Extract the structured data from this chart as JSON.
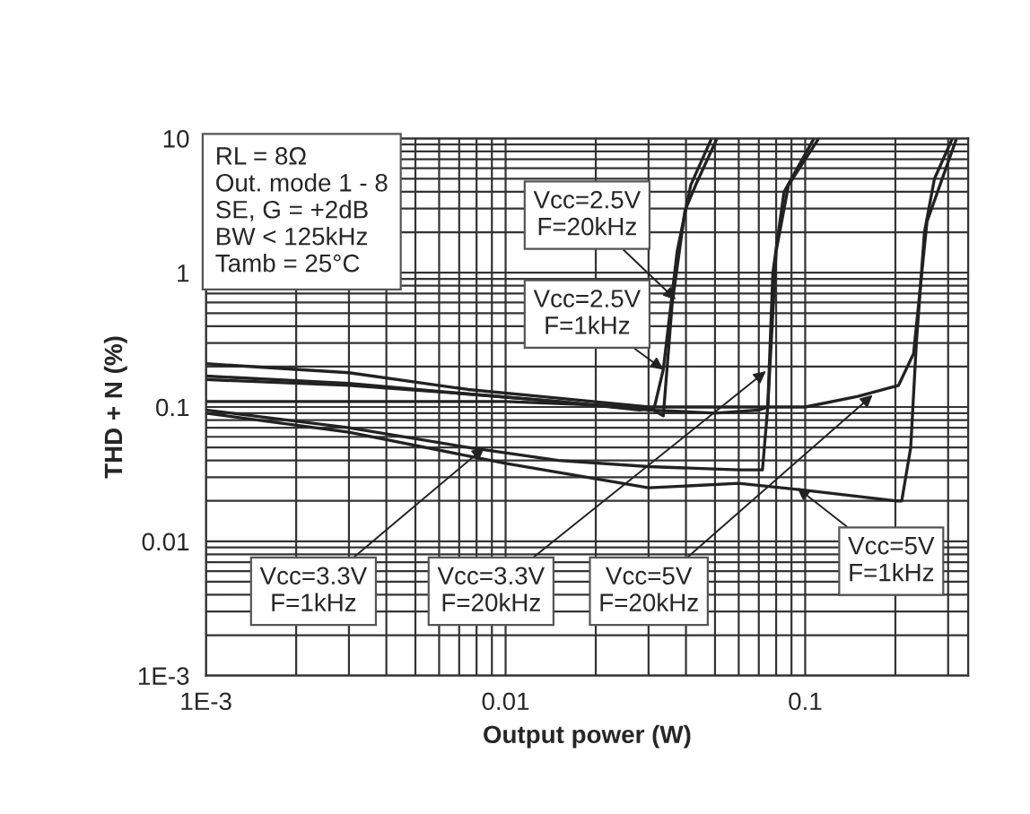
{
  "chart_data": {
    "type": "line",
    "xlabel": "Output power (W)",
    "ylabel": "THD + N (%)",
    "log": "xy",
    "grid": true,
    "xlim": [
      0.001,
      0.35
    ],
    "ylim": [
      0.001,
      10
    ],
    "xticks": [
      {
        "value": 0.001,
        "label": "1E-3"
      },
      0.01,
      0.1
    ],
    "yticks": [
      {
        "value": 0.001,
        "label": "1E-3"
      },
      0.01,
      0.1,
      1,
      10
    ],
    "series": [
      {
        "color": "#222222",
        "x": [
          0.001,
          0.003,
          0.0075,
          0.013,
          0.03,
          0.0336,
          0.036,
          0.0397,
          0.0431,
          0.0508
        ],
        "values": [
          0.21,
          0.18,
          0.135,
          0.12,
          0.1,
          0.086,
          0.6,
          2.9,
          4.5,
          10
        ]
      },
      {
        "color": "#222222",
        "x": [
          0.001,
          0.003,
          0.0075,
          0.015,
          0.028,
          0.0314,
          0.0336,
          0.0374,
          0.0415,
          0.0487
        ],
        "values": [
          0.16,
          0.145,
          0.125,
          0.11,
          0.095,
          0.1,
          0.19,
          1.45,
          4.5,
          10
        ]
      },
      {
        "color": "#222222",
        "x": [
          0.001,
          0.003,
          0.0075,
          0.015,
          0.03,
          0.05,
          0.07,
          0.075,
          0.08,
          0.088,
          0.111
        ],
        "values": [
          0.17,
          0.15,
          0.125,
          0.11,
          0.095,
          0.09,
          0.095,
          0.1,
          1.45,
          4.5,
          10
        ]
      },
      {
        "color": "#222222",
        "x": [
          0.001,
          0.003,
          0.0075,
          0.015,
          0.03,
          0.06,
          0.072,
          0.075,
          0.078,
          0.085,
          0.107
        ],
        "values": [
          0.095,
          0.07,
          0.05,
          0.04,
          0.036,
          0.034,
          0.034,
          0.1,
          1,
          4,
          10
        ]
      },
      {
        "color": "#222222",
        "x": [
          0.001,
          0.003,
          0.01,
          0.03,
          0.06,
          0.1,
          0.15,
          0.205,
          0.23,
          0.255,
          0.32
        ],
        "values": [
          0.11,
          0.11,
          0.11,
          0.1,
          0.1,
          0.1,
          0.12,
          0.145,
          0.25,
          2.4,
          10
        ]
      },
      {
        "color": "#222222",
        "x": [
          0.001,
          0.003,
          0.01,
          0.03,
          0.06,
          0.1,
          0.2,
          0.21,
          0.225,
          0.235,
          0.25,
          0.27,
          0.31
        ],
        "values": [
          0.09,
          0.065,
          0.038,
          0.025,
          0.027,
          0.024,
          0.02,
          0.02,
          0.05,
          0.3,
          2,
          5,
          10
        ]
      }
    ],
    "annotations": [
      "RL = 8Ω\nOut. mode 1 - 8\nSE, G = +2dB\nBW < 125kHz\nTamb = 25°C",
      {
        "text": "Vcc=2.5V\nF=20kHz",
        "x": 0.037,
        "y": 0.63
      },
      {
        "text": "Vcc=2.5V\nF=1kHz",
        "x": 0.0336,
        "y": 0.19
      },
      {
        "text": "Vcc=3.3V\nF=1kHz",
        "x": 0.0085,
        "y": 0.05
      },
      {
        "text": "Vcc=3.3V\nF=20kHz",
        "x": 0.074,
        "y": 0.185
      },
      {
        "text": "Vcc=5V\nF=20kHz",
        "x": 0.168,
        "y": 0.123
      },
      {
        "text": "Vcc=5V\nF=1kHz",
        "x": 0.094,
        "y": 0.025
      }
    ]
  }
}
